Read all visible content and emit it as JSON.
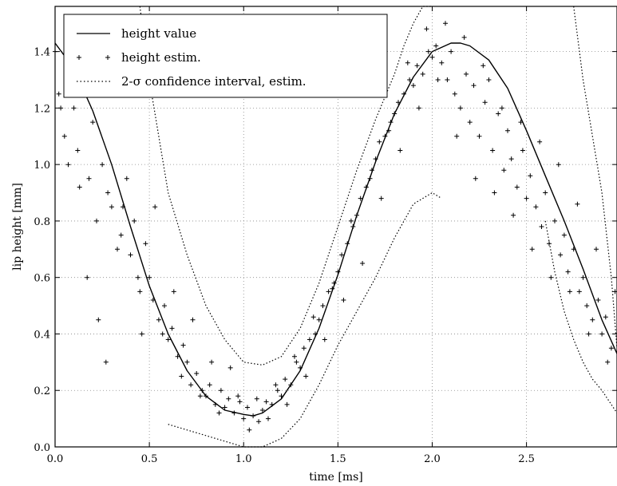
{
  "chart_data": {
    "type": "scatter",
    "title": "",
    "xlabel": "time [ms]",
    "ylabel": "lip height [mm]",
    "xlim": [
      0.0,
      2.98
    ],
    "ylim": [
      0.0,
      1.56
    ],
    "xticks": [
      "0.0",
      "0.5",
      "1.0",
      "1.5",
      "2.0",
      "2.5"
    ],
    "xtick_values": [
      0.0,
      0.5,
      1.0,
      1.5,
      2.0,
      2.5
    ],
    "yticks": [
      "0.0",
      "0.2",
      "0.4",
      "0.6",
      "0.8",
      "1.0",
      "1.2",
      "1.4"
    ],
    "ytick_values": [
      0.0,
      0.2,
      0.4,
      0.6,
      0.8,
      1.0,
      1.2,
      1.4
    ],
    "grid": true,
    "legend_position": "top-left",
    "series": [
      {
        "name": "height value",
        "style": "solid-line",
        "color": "#000000",
        "x": [
          0.0,
          0.1,
          0.2,
          0.3,
          0.4,
          0.5,
          0.6,
          0.7,
          0.8,
          0.9,
          1.0,
          1.05,
          1.1,
          1.2,
          1.3,
          1.4,
          1.5,
          1.6,
          1.7,
          1.8,
          1.9,
          2.0,
          2.1,
          2.15,
          2.2,
          2.3,
          2.4,
          2.5,
          2.6,
          2.7,
          2.8,
          2.9,
          2.98
        ],
        "y": [
          1.43,
          1.34,
          1.19,
          1.0,
          0.78,
          0.57,
          0.4,
          0.27,
          0.18,
          0.13,
          0.115,
          0.11,
          0.12,
          0.17,
          0.27,
          0.42,
          0.61,
          0.82,
          1.01,
          1.18,
          1.31,
          1.4,
          1.43,
          1.43,
          1.42,
          1.37,
          1.27,
          1.12,
          0.96,
          0.8,
          0.63,
          0.45,
          0.33
        ]
      },
      {
        "name": "height estim.",
        "style": "plus-markers",
        "color": "#000000",
        "x": [
          0.0,
          0.02,
          0.05,
          0.08,
          0.1,
          0.12,
          0.15,
          0.18,
          0.2,
          0.22,
          0.25,
          0.28,
          0.3,
          0.33,
          0.35,
          0.38,
          0.4,
          0.42,
          0.45,
          0.48,
          0.5,
          0.52,
          0.55,
          0.58,
          0.6,
          0.62,
          0.65,
          0.68,
          0.7,
          0.72,
          0.75,
          0.78,
          0.8,
          0.82,
          0.85,
          0.88,
          0.9,
          0.92,
          0.95,
          0.98,
          1.0,
          1.02,
          1.05,
          1.08,
          1.1,
          1.12,
          1.15,
          1.18,
          1.2,
          1.22,
          1.25,
          1.28,
          1.3,
          1.32,
          1.35,
          1.38,
          1.4,
          1.42,
          1.45,
          1.48,
          1.5,
          1.52,
          1.55,
          1.58,
          1.6,
          1.62,
          1.65,
          1.68,
          1.7,
          1.72,
          1.75,
          1.78,
          1.8,
          1.82,
          1.85,
          1.88,
          1.9,
          1.92,
          1.95,
          1.98,
          2.0,
          2.02,
          2.05,
          2.08,
          2.1,
          2.12,
          2.15,
          2.18,
          2.2,
          2.22,
          2.25,
          2.28,
          2.3,
          2.32,
          2.35,
          2.38,
          2.4,
          2.42,
          2.45,
          2.48,
          2.5,
          2.52,
          2.55,
          2.58,
          2.6,
          2.62,
          2.65,
          2.68,
          2.7,
          2.72,
          2.75,
          2.78,
          2.8,
          2.82,
          2.85,
          2.88,
          2.9,
          2.92,
          2.95,
          0.03,
          0.07,
          0.13,
          0.17,
          0.23,
          0.27,
          0.36,
          0.44,
          0.46,
          0.53,
          0.57,
          0.63,
          0.67,
          0.73,
          0.77,
          0.83,
          0.87,
          0.93,
          0.97,
          1.03,
          1.07,
          1.13,
          1.17,
          1.23,
          1.27,
          1.33,
          1.37,
          1.43,
          1.47,
          1.53,
          1.57,
          1.63,
          1.67,
          1.73,
          1.77,
          1.83,
          1.87,
          1.93,
          1.97,
          2.03,
          2.07,
          2.13,
          2.17,
          2.23,
          2.27,
          2.33,
          2.37,
          2.43,
          2.47,
          2.53,
          2.57,
          2.63,
          2.67,
          2.73,
          2.77,
          2.83,
          2.87,
          2.93,
          2.97
        ],
        "y": [
          1.4,
          1.25,
          1.1,
          1.38,
          1.2,
          1.05,
          1.3,
          0.95,
          1.15,
          0.8,
          1.0,
          0.9,
          0.85,
          0.7,
          0.75,
          0.95,
          0.68,
          0.8,
          0.55,
          0.72,
          0.6,
          0.52,
          0.45,
          0.5,
          0.38,
          0.42,
          0.32,
          0.36,
          0.3,
          0.22,
          0.26,
          0.2,
          0.18,
          0.22,
          0.15,
          0.2,
          0.14,
          0.17,
          0.12,
          0.16,
          0.1,
          0.14,
          0.11,
          0.09,
          0.13,
          0.16,
          0.15,
          0.2,
          0.18,
          0.24,
          0.22,
          0.3,
          0.28,
          0.35,
          0.38,
          0.4,
          0.45,
          0.5,
          0.55,
          0.58,
          0.62,
          0.68,
          0.72,
          0.78,
          0.82,
          0.88,
          0.92,
          0.98,
          1.02,
          1.08,
          1.1,
          1.15,
          1.18,
          1.22,
          1.25,
          1.3,
          1.28,
          1.35,
          1.32,
          1.4,
          1.38,
          1.42,
          1.36,
          1.3,
          1.4,
          1.25,
          1.2,
          1.32,
          1.15,
          1.28,
          1.1,
          1.22,
          1.3,
          1.05,
          1.18,
          0.98,
          1.12,
          1.02,
          0.92,
          1.05,
          0.88,
          0.96,
          0.85,
          0.78,
          0.9,
          0.72,
          0.8,
          0.68,
          0.75,
          0.62,
          0.7,
          0.55,
          0.6,
          0.5,
          0.45,
          0.52,
          0.4,
          0.46,
          0.35,
          1.2,
          1.0,
          0.92,
          0.6,
          0.45,
          0.3,
          0.85,
          0.6,
          0.4,
          0.85,
          0.4,
          0.55,
          0.25,
          0.45,
          0.18,
          0.3,
          0.12,
          0.28,
          0.18,
          0.06,
          0.17,
          0.1,
          0.22,
          0.15,
          0.32,
          0.25,
          0.46,
          0.38,
          0.56,
          0.52,
          0.8,
          0.65,
          0.95,
          0.88,
          1.12,
          1.05,
          1.36,
          1.2,
          1.48,
          1.3,
          1.5,
          1.1,
          1.45,
          0.95,
          1.35,
          0.9,
          1.2,
          0.82,
          1.15,
          0.7,
          1.08,
          0.6,
          1.0,
          0.55,
          0.86,
          0.4,
          0.7,
          0.3,
          0.55
        ]
      },
      {
        "name": "2-σ confidence interval, estim.",
        "style": "dotted",
        "color": "#000000",
        "upper": {
          "x": [
            0.45,
            0.5,
            0.55,
            0.6,
            0.7,
            0.8,
            0.9,
            1.0,
            1.1,
            1.2,
            1.3,
            1.4,
            1.5,
            1.6,
            1.7,
            1.8,
            1.85,
            1.9,
            1.95,
            2.0
          ],
          "y": [
            1.56,
            1.3,
            1.1,
            0.9,
            0.68,
            0.5,
            0.38,
            0.3,
            0.29,
            0.32,
            0.42,
            0.58,
            0.78,
            0.98,
            1.16,
            1.32,
            1.42,
            1.5,
            1.56,
            1.56
          ]
        },
        "lower": {
          "x": [
            0.6,
            0.7,
            0.8,
            0.9,
            1.0,
            1.1,
            1.2,
            1.3,
            1.4,
            1.5,
            1.6,
            1.7,
            1.8,
            1.9,
            2.0,
            2.05
          ],
          "y": [
            0.08,
            0.06,
            0.04,
            0.02,
            0.0,
            0.0,
            0.03,
            0.1,
            0.22,
            0.36,
            0.48,
            0.6,
            0.74,
            0.86,
            0.9,
            0.88
          ]
        },
        "upper_right": {
          "x": [
            2.75,
            2.8,
            2.85,
            2.9,
            2.95,
            2.98
          ],
          "y": [
            1.56,
            1.3,
            1.1,
            0.9,
            0.6,
            0.35
          ]
        },
        "lower_right": {
          "x": [
            2.6,
            2.65,
            2.7,
            2.75,
            2.8,
            2.85,
            2.9,
            2.95,
            2.98
          ],
          "y": [
            0.8,
            0.62,
            0.48,
            0.38,
            0.3,
            0.24,
            0.2,
            0.15,
            0.12
          ]
        }
      }
    ]
  }
}
